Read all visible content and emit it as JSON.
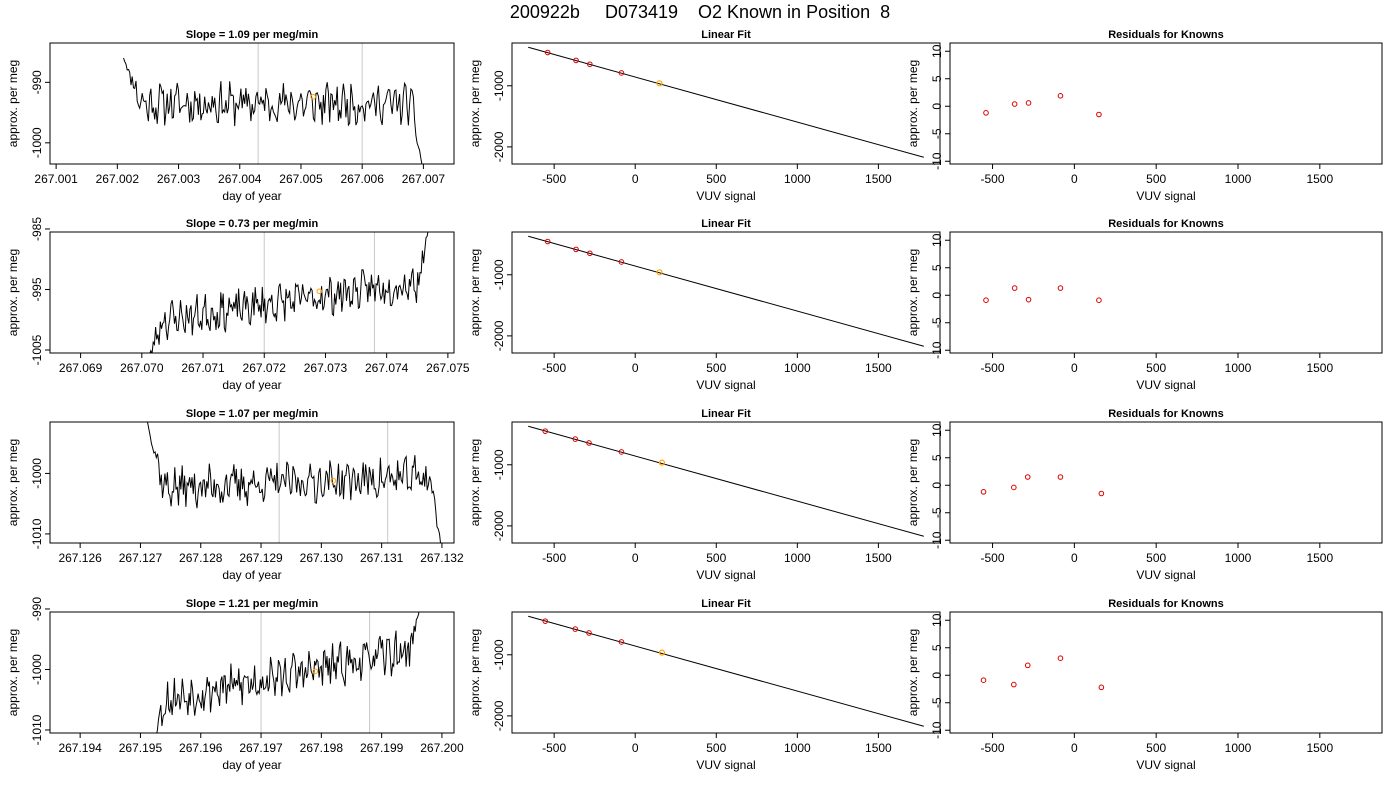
{
  "figure_title": "200922b     D073419    O2 Known in Position  8",
  "colors": {
    "axis": "#000000",
    "line": "#000000",
    "vline": "#c8c8c8",
    "point": "#dd0000",
    "orange": "#ffa500"
  },
  "chart_data": [
    {
      "type": "line",
      "title": "Slope =  1.09  per meg/min",
      "xlabel": "day of year",
      "ylabel": "approx. per meg",
      "xlim": [
        267.0009,
        267.0075
      ],
      "ylim": [
        -1003.5,
        -983.5
      ],
      "xticks": [
        267.001,
        267.002,
        267.003,
        267.004,
        267.005,
        267.006,
        267.007
      ],
      "xtick_labels": [
        "267.001",
        "267.002",
        "267.003",
        "267.004",
        "267.005",
        "267.006",
        "267.007"
      ],
      "yticks": [
        -990,
        -1000
      ],
      "ytick_labels": [
        "-990",
        "-1000"
      ],
      "vlines": [
        267.0043,
        267.006
      ],
      "marker": {
        "x": 267.0052,
        "y": -992.4
      },
      "trace": {
        "x_start": 267.0021,
        "x_end": 267.007,
        "start_y": -986,
        "end_y": -1005,
        "base": -993.5,
        "amp": 2.8,
        "trend": 0.0,
        "seed": 11
      }
    },
    {
      "type": "line",
      "title": "Linear Fit",
      "xlabel": "VUV signal",
      "ylabel": "approx. per meg",
      "xlim": [
        -760,
        1880
      ],
      "ylim": [
        -2280,
        -300
      ],
      "xticks": [
        -500,
        0,
        500,
        1000,
        1500
      ],
      "xtick_labels": [
        "-500",
        "0",
        "500",
        "1000",
        "1500"
      ],
      "yticks": [
        -1000,
        -2000
      ],
      "ytick_labels": [
        "-1000",
        "-2000"
      ],
      "fit_line": {
        "x": [
          -660,
          1780
        ],
        "y": [
          -370,
          -2170
        ]
      },
      "points": {
        "x": [
          -540,
          -365,
          -280,
          -85
        ],
        "y": [
          -456,
          -585,
          -648,
          -790
        ]
      },
      "orange_point": {
        "x": 150,
        "y": -960
      }
    },
    {
      "type": "scatter",
      "title": "Residuals for Knowns",
      "xlabel": "VUV signal",
      "ylabel": "approx. per meg",
      "xlim": [
        -760,
        1880
      ],
      "ylim": [
        -10.5,
        11.5
      ],
      "xticks": [
        -500,
        0,
        500,
        1000,
        1500
      ],
      "xtick_labels": [
        "-500",
        "0",
        "500",
        "1000",
        "1500"
      ],
      "yticks": [
        10,
        5,
        0,
        -5,
        -10
      ],
      "ytick_labels": [
        "10",
        "5",
        "0",
        "-5",
        "-10"
      ],
      "points": {
        "x": [
          -540,
          -365,
          -280,
          -85,
          150
        ],
        "y": [
          -1.2,
          0.4,
          0.6,
          1.9,
          -1.5
        ]
      }
    },
    {
      "type": "line",
      "title": "Slope =  0.73  per meg/min",
      "xlabel": "day of year",
      "ylabel": "approx. per meg",
      "xlim": [
        267.0685,
        267.0751
      ],
      "ylim": [
        -1005.5,
        -985.5
      ],
      "xticks": [
        267.069,
        267.07,
        267.071,
        267.072,
        267.073,
        267.074,
        267.075
      ],
      "xtick_labels": [
        "267.069",
        "267.070",
        "267.071",
        "267.072",
        "267.073",
        "267.074",
        "267.075"
      ],
      "yticks": [
        -985,
        -995,
        -1005
      ],
      "ytick_labels": [
        "-985",
        "-995",
        "-1005"
      ],
      "vlines": [
        267.072,
        267.0738
      ],
      "marker": {
        "x": 267.0729,
        "y": -995.3
      },
      "trace": {
        "x_start": 267.07005,
        "x_end": 267.0747,
        "start_y": -1008,
        "end_y": -984,
        "base": -1000.5,
        "amp": 2.6,
        "trend": 7.0,
        "seed": 23
      }
    },
    {
      "type": "line",
      "title": "Linear Fit",
      "xlabel": "VUV signal",
      "ylabel": "approx. per meg",
      "xlim": [
        -760,
        1880
      ],
      "ylim": [
        -2280,
        -300
      ],
      "xticks": [
        -500,
        0,
        500,
        1000,
        1500
      ],
      "xtick_labels": [
        "-500",
        "0",
        "500",
        "1000",
        "1500"
      ],
      "yticks": [
        -1000,
        -2000
      ],
      "ytick_labels": [
        "-1000",
        "-2000"
      ],
      "fit_line": {
        "x": [
          -660,
          1780
        ],
        "y": [
          -370,
          -2170
        ]
      },
      "points": {
        "x": [
          -540,
          -365,
          -280,
          -85
        ],
        "y": [
          -456,
          -585,
          -648,
          -790
        ]
      },
      "orange_point": {
        "x": 150,
        "y": -960
      }
    },
    {
      "type": "scatter",
      "title": "Residuals for Knowns",
      "xlabel": "VUV signal",
      "ylabel": "approx. per meg",
      "xlim": [
        -760,
        1880
      ],
      "ylim": [
        -10.5,
        11.5
      ],
      "xticks": [
        -500,
        0,
        500,
        1000,
        1500
      ],
      "xtick_labels": [
        "-500",
        "0",
        "500",
        "1000",
        "1500"
      ],
      "yticks": [
        10,
        5,
        0,
        -5,
        -10
      ],
      "ytick_labels": [
        "10",
        "5",
        "0",
        "-5",
        "-10"
      ],
      "points": {
        "x": [
          -540,
          -365,
          -280,
          -85,
          150
        ],
        "y": [
          -0.9,
          1.3,
          -0.8,
          1.3,
          -0.9
        ]
      }
    },
    {
      "type": "line",
      "title": "Slope =  1.07  per meg/min",
      "xlabel": "day of year",
      "ylabel": "approx. per meg",
      "xlim": [
        267.1255,
        267.1322
      ],
      "ylim": [
        -1011.5,
        -991.5
      ],
      "xticks": [
        267.126,
        267.127,
        267.128,
        267.129,
        267.13,
        267.131,
        267.132
      ],
      "xtick_labels": [
        "267.126",
        "267.127",
        "267.128",
        "267.129",
        "267.130",
        "267.131",
        "267.132"
      ],
      "yticks": [
        -1000,
        -1010
      ],
      "ytick_labels": [
        "-1000",
        "-1010"
      ],
      "vlines": [
        267.1293,
        267.1311
      ],
      "marker": {
        "x": 267.1302,
        "y": -1001.2
      },
      "trace": {
        "x_start": 267.1271,
        "x_end": 267.132,
        "start_y": -991,
        "end_y": -1013,
        "base": -1002.5,
        "amp": 2.8,
        "trend": 2.0,
        "seed": 37
      }
    },
    {
      "type": "line",
      "title": "Linear Fit",
      "xlabel": "VUV signal",
      "ylabel": "approx. per meg",
      "xlim": [
        -760,
        1880
      ],
      "ylim": [
        -2280,
        -300
      ],
      "xticks": [
        -500,
        0,
        500,
        1000,
        1500
      ],
      "xtick_labels": [
        "-500",
        "0",
        "500",
        "1000",
        "1500"
      ],
      "yticks": [
        -1000,
        -2000
      ],
      "ytick_labels": [
        "-1000",
        "-2000"
      ],
      "fit_line": {
        "x": [
          -660,
          1780
        ],
        "y": [
          -370,
          -2170
        ]
      },
      "points": {
        "x": [
          -555,
          -370,
          -285,
          -85
        ],
        "y": [
          -450,
          -580,
          -643,
          -790
        ]
      },
      "orange_point": {
        "x": 165,
        "y": -965
      }
    },
    {
      "type": "scatter",
      "title": "Residuals for Knowns",
      "xlabel": "VUV signal",
      "ylabel": "approx. per meg",
      "xlim": [
        -760,
        1880
      ],
      "ylim": [
        -10.5,
        11.5
      ],
      "xticks": [
        -500,
        0,
        500,
        1000,
        1500
      ],
      "xtick_labels": [
        "-500",
        "0",
        "500",
        "1000",
        "1500"
      ],
      "yticks": [
        10,
        5,
        0,
        -5,
        -10
      ],
      "ytick_labels": [
        "10",
        "5",
        "0",
        "-5",
        "-10"
      ],
      "points": {
        "x": [
          -555,
          -370,
          -285,
          -85,
          165
        ],
        "y": [
          -1.2,
          -0.4,
          1.5,
          1.5,
          -1.5
        ]
      }
    },
    {
      "type": "line",
      "title": "Slope =  1.21  per meg/min",
      "xlabel": "day of year",
      "ylabel": "approx. per meg",
      "xlim": [
        267.1935,
        267.2002
      ],
      "ylim": [
        -1010.5,
        -990.5
      ],
      "xticks": [
        267.194,
        267.195,
        267.196,
        267.197,
        267.198,
        267.199,
        267.2
      ],
      "xtick_labels": [
        "267.194",
        "267.195",
        "267.196",
        "267.197",
        "267.198",
        "267.199",
        "267.200"
      ],
      "yticks": [
        -990,
        -1000,
        -1010
      ],
      "ytick_labels": [
        "-990",
        "-1000",
        "-1010"
      ],
      "vlines": [
        267.197,
        267.1988
      ],
      "marker": {
        "x": 267.1979,
        "y": -1000.3
      },
      "trace": {
        "x_start": 267.19515,
        "x_end": 267.19965,
        "start_y": -1013,
        "end_y": -989,
        "base": -1005.5,
        "amp": 2.8,
        "trend": 9.0,
        "seed": 53
      }
    },
    {
      "type": "line",
      "title": "Linear Fit",
      "xlabel": "VUV signal",
      "ylabel": "approx. per meg",
      "xlim": [
        -760,
        1880
      ],
      "ylim": [
        -2280,
        -300
      ],
      "xticks": [
        -500,
        0,
        500,
        1000,
        1500
      ],
      "xtick_labels": [
        "-500",
        "0",
        "500",
        "1000",
        "1500"
      ],
      "yticks": [
        -1000,
        -2000
      ],
      "ytick_labels": [
        "-1000",
        "-2000"
      ],
      "fit_line": {
        "x": [
          -660,
          1780
        ],
        "y": [
          -370,
          -2170
        ]
      },
      "points": {
        "x": [
          -555,
          -370,
          -285,
          -85
        ],
        "y": [
          -450,
          -580,
          -643,
          -790
        ]
      },
      "orange_point": {
        "x": 165,
        "y": -965
      }
    },
    {
      "type": "scatter",
      "title": "Residuals for Knowns",
      "xlabel": "VUV signal",
      "ylabel": "approx. per meg",
      "xlim": [
        -760,
        1880
      ],
      "ylim": [
        -10.5,
        11.5
      ],
      "xticks": [
        -500,
        0,
        500,
        1000,
        1500
      ],
      "xtick_labels": [
        "-500",
        "0",
        "500",
        "1000",
        "1500"
      ],
      "yticks": [
        10,
        5,
        0,
        -5,
        -10
      ],
      "ytick_labels": [
        "10",
        "5",
        "0",
        "-5",
        "-10"
      ],
      "points": {
        "x": [
          -555,
          -370,
          -285,
          -85,
          165
        ],
        "y": [
          -0.9,
          -1.7,
          1.8,
          3.1,
          -2.2
        ]
      }
    }
  ]
}
